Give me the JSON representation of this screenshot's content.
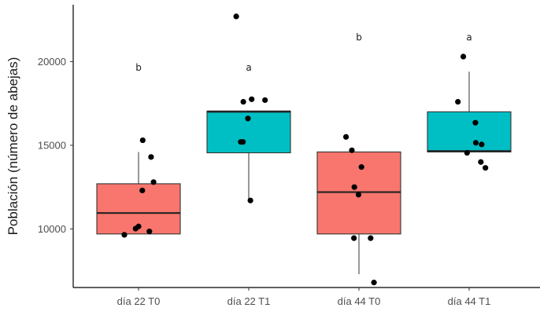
{
  "chart_data": {
    "type": "boxplot",
    "ylabel": "Población (número de abejas)",
    "xlabel": "",
    "ylim": [
      6500,
      23400
    ],
    "yticks": [
      10000,
      15000,
      20000
    ],
    "grid": false,
    "colors": {
      "T0": "#F8766D",
      "T1": "#00BFC4"
    },
    "groups": [
      {
        "label": "día 22 T0",
        "fill": "#F8766D",
        "letter": "b",
        "letter_y": 19650,
        "whisker_low": 9700,
        "q1": 9700,
        "median": 10950,
        "q3": 12700,
        "whisker_high": 14600,
        "points": [
          {
            "x": -0.34,
            "y": 9650
          },
          {
            "x": -0.07,
            "y": 10020
          },
          {
            "x": 0.0,
            "y": 10150
          },
          {
            "x": 0.26,
            "y": 9850
          },
          {
            "x": 0.09,
            "y": 12300
          },
          {
            "x": 0.36,
            "y": 12800
          },
          {
            "x": 0.3,
            "y": 14300
          },
          {
            "x": 0.1,
            "y": 15300
          }
        ]
      },
      {
        "label": "día 22 T1",
        "fill": "#00BFC4",
        "letter": "a",
        "letter_y": 19650,
        "whisker_low": 11700,
        "q1": 14550,
        "median": 17000,
        "q3": 17050,
        "whisker_high": 17050,
        "points": [
          {
            "x": -0.3,
            "y": 22700
          },
          {
            "x": -0.13,
            "y": 17600
          },
          {
            "x": 0.07,
            "y": 17750
          },
          {
            "x": 0.39,
            "y": 17700
          },
          {
            "x": -0.02,
            "y": 16600
          },
          {
            "x": -0.19,
            "y": 15200
          },
          {
            "x": -0.14,
            "y": 15200
          },
          {
            "x": 0.04,
            "y": 11700
          }
        ]
      },
      {
        "label": "día 44 T0",
        "fill": "#F8766D",
        "letter": "b",
        "letter_y": 21450,
        "whisker_low": 7300,
        "q1": 9700,
        "median": 12200,
        "q3": 14600,
        "whisker_high": 14600,
        "points": [
          {
            "x": -0.31,
            "y": 15500
          },
          {
            "x": -0.17,
            "y": 14700
          },
          {
            "x": 0.06,
            "y": 13700
          },
          {
            "x": -0.11,
            "y": 12500
          },
          {
            "x": -0.01,
            "y": 12050
          },
          {
            "x": -0.12,
            "y": 9450
          },
          {
            "x": 0.28,
            "y": 9450
          },
          {
            "x": 0.36,
            "y": 6800
          }
        ]
      },
      {
        "label": "día 44 T1",
        "fill": "#00BFC4",
        "letter": "a",
        "letter_y": 21450,
        "whisker_low": 14600,
        "q1": 14600,
        "median": 14650,
        "q3": 17000,
        "whisker_high": 19400,
        "points": [
          {
            "x": -0.14,
            "y": 20300
          },
          {
            "x": -0.27,
            "y": 17600
          },
          {
            "x": 0.15,
            "y": 16350
          },
          {
            "x": 0.16,
            "y": 15150
          },
          {
            "x": 0.3,
            "y": 15050
          },
          {
            "x": -0.05,
            "y": 14550
          },
          {
            "x": 0.28,
            "y": 14000
          },
          {
            "x": 0.39,
            "y": 13650
          }
        ]
      }
    ]
  }
}
